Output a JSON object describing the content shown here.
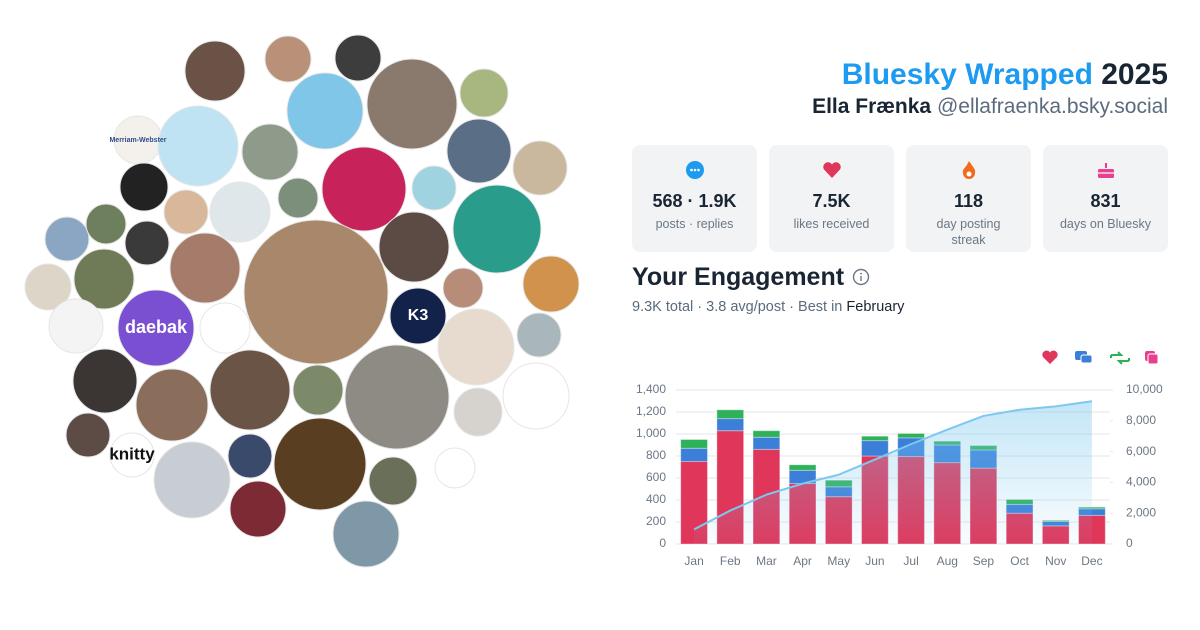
{
  "header": {
    "title": "Bluesky Wrapped",
    "year": "2025",
    "name": "Ella Frænka",
    "handle": "@ellafraenka.bsky.social"
  },
  "stats": [
    {
      "value": "568 · 1.9K",
      "label": "posts · replies"
    },
    {
      "value": "7.5K",
      "label": "likes received"
    },
    {
      "value": "118",
      "label": "day posting streak"
    },
    {
      "value": "831",
      "label": "days on Bluesky"
    }
  ],
  "engagement": {
    "title": "Your Engagement",
    "summary": "9.3K total · 3.8 avg/post · Best in",
    "best": "February"
  },
  "avatar_labels": [
    "Merriam-Webster",
    "daebak",
    "K3",
    "knitty"
  ],
  "chart_data": {
    "type": "bar",
    "stacked": true,
    "categories": [
      "Jan",
      "Feb",
      "Mar",
      "Apr",
      "May",
      "Jun",
      "Jul",
      "Aug",
      "Sep",
      "Oct",
      "Nov",
      "Dec"
    ],
    "series": [
      {
        "color": "#e0365a",
        "values": [
          750,
          1030,
          860,
          550,
          430,
          800,
          795,
          740,
          690,
          280,
          165,
          260
        ]
      },
      {
        "color": "#3b7fd9",
        "values": [
          120,
          110,
          110,
          120,
          90,
          140,
          170,
          160,
          165,
          80,
          40,
          60
        ]
      },
      {
        "color": "#2fb15a",
        "values": [
          80,
          80,
          60,
          50,
          60,
          40,
          40,
          35,
          40,
          45,
          10,
          15
        ]
      },
      {
        "type": "line",
        "axis": "y2",
        "color": "#7cc8ee",
        "values": [
          950,
          2170,
          3200,
          3920,
          4500,
          5480,
          6485,
          7420,
          8315,
          8720,
          8935,
          9270
        ]
      }
    ],
    "ylim": [
      0,
      1400
    ],
    "yticks": [
      0,
      200,
      400,
      600,
      800,
      {
        "value": 1000,
        "label": "1,000"
      },
      {
        "value": 1200,
        "label": "1,200"
      },
      {
        "value": 1400,
        "label": "1,400"
      }
    ],
    "y2lim": [
      0,
      10000
    ],
    "y2ticks": [
      0,
      {
        "value": 2000,
        "label": "2,000"
      },
      {
        "value": 4000,
        "label": "4,000"
      },
      {
        "value": 6000,
        "label": "6,000"
      },
      {
        "value": 8000,
        "label": "8,000"
      },
      {
        "value": 10000,
        "label": "10,000"
      }
    ],
    "grid": true
  }
}
